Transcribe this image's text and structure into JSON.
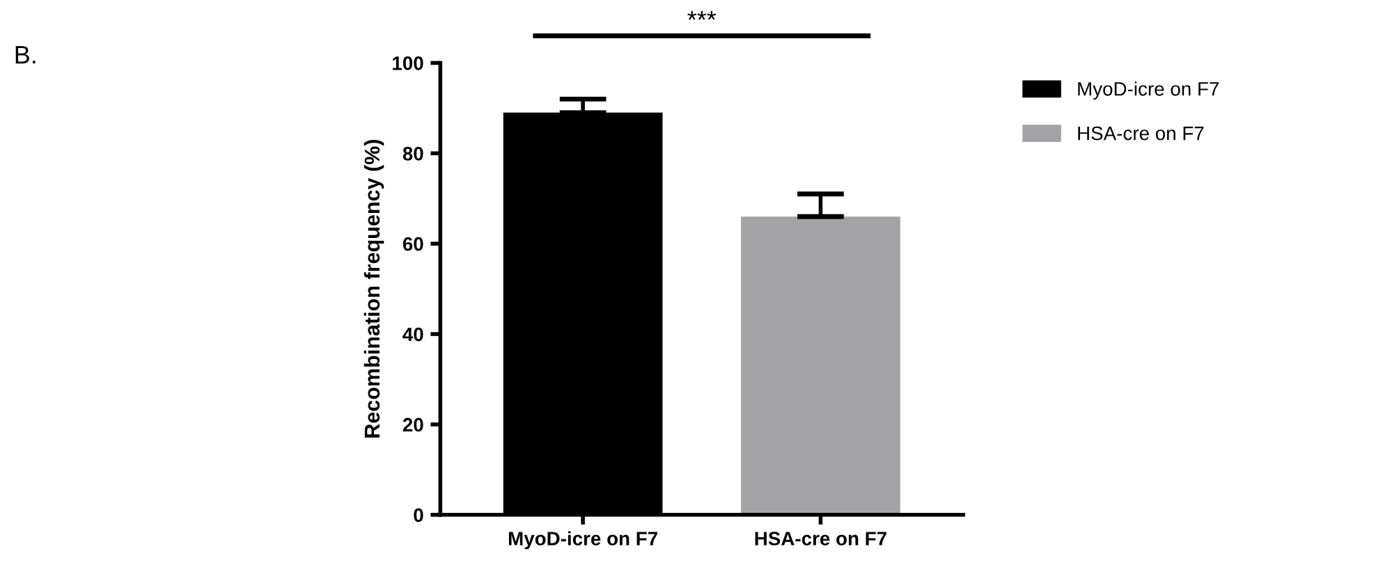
{
  "chart_data": {
    "type": "bar",
    "ylabel": "Recombination frequency (%)",
    "categories": [
      "MyoD-icre on F7",
      "HSA-cre on F7"
    ],
    "series": [
      {
        "name": "MyoD-icre on F7",
        "color": "#000000",
        "values": [
          89,
          null
        ],
        "errors": [
          3,
          null
        ]
      },
      {
        "name": "HSA-cre on F7",
        "color": "#a3a3a6",
        "values": [
          null,
          66
        ],
        "errors": [
          null,
          5
        ]
      }
    ],
    "ylim": [
      0,
      100
    ],
    "yticks": [
      0,
      20,
      40,
      60,
      80,
      100
    ],
    "grid": false,
    "legend": "top right",
    "annotations": [
      "***",
      "B."
    ]
  }
}
